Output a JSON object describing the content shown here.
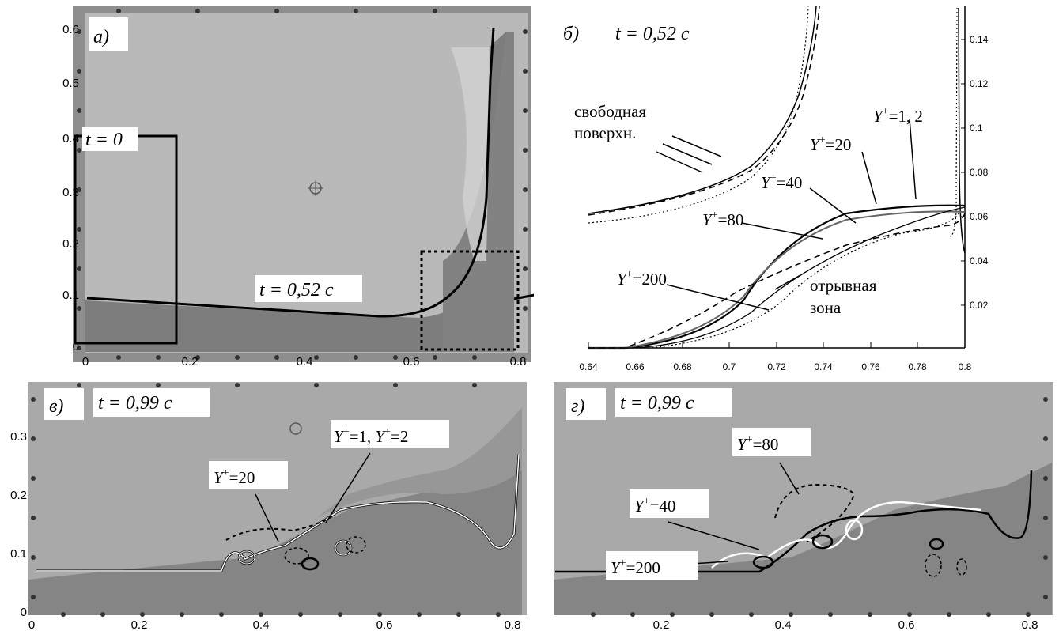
{
  "panel_a": {
    "label": "а)",
    "time_initial": "t = 0",
    "time_label": "t = 0,52 с",
    "x_ticks": [
      "0",
      "0.2",
      "0.4",
      "0.6",
      "0.8"
    ],
    "y_ticks": [
      "0",
      "0.1",
      "0.2",
      "0.3",
      "0.4",
      "0.5",
      "0.6"
    ]
  },
  "panel_b": {
    "label": "б)",
    "time_label": "t = 0,52 с",
    "x_ticks": [
      "0.64",
      "0.66",
      "0.68",
      "0.7",
      "0.72",
      "0.74",
      "0.76",
      "0.78",
      "0.8"
    ],
    "y_ticks": [
      "0.02",
      "0.04",
      "0.06",
      "0.08",
      "0.1",
      "0.12",
      "0.14"
    ],
    "annotations": {
      "free_surface_1": "свободная",
      "free_surface_2": "поверхн.",
      "separation_1": "отрывная",
      "separation_2": "зона",
      "yplus_1_2": "=1, 2",
      "yplus_20": "=20",
      "yplus_40": "=40",
      "yplus_80": "=80",
      "yplus_200": "=200",
      "y_letter": "Y",
      "plus": "+"
    }
  },
  "panel_c": {
    "label": "в)",
    "time_label": "t = 0,99 с",
    "x_ticks": [
      "0",
      "0.2",
      "0.4",
      "0.6",
      "0.8"
    ],
    "y_ticks": [
      "0",
      "0.1",
      "0.2",
      "0.3"
    ],
    "annotations": {
      "yplus_1_2_a": "=1, ",
      "yplus_1_2_b": "=2",
      "yplus_20": "=20",
      "y_letter": "Y",
      "plus": "+"
    }
  },
  "panel_d": {
    "label": "г)",
    "time_label": "t = 0,99 с",
    "x_ticks": [
      "0.2",
      "0.4",
      "0.6",
      "0.8"
    ],
    "annotations": {
      "yplus_80": "=80",
      "yplus_40": "=40",
      "yplus_200": "=200",
      "y_letter": "Y",
      "plus": "+"
    }
  }
}
